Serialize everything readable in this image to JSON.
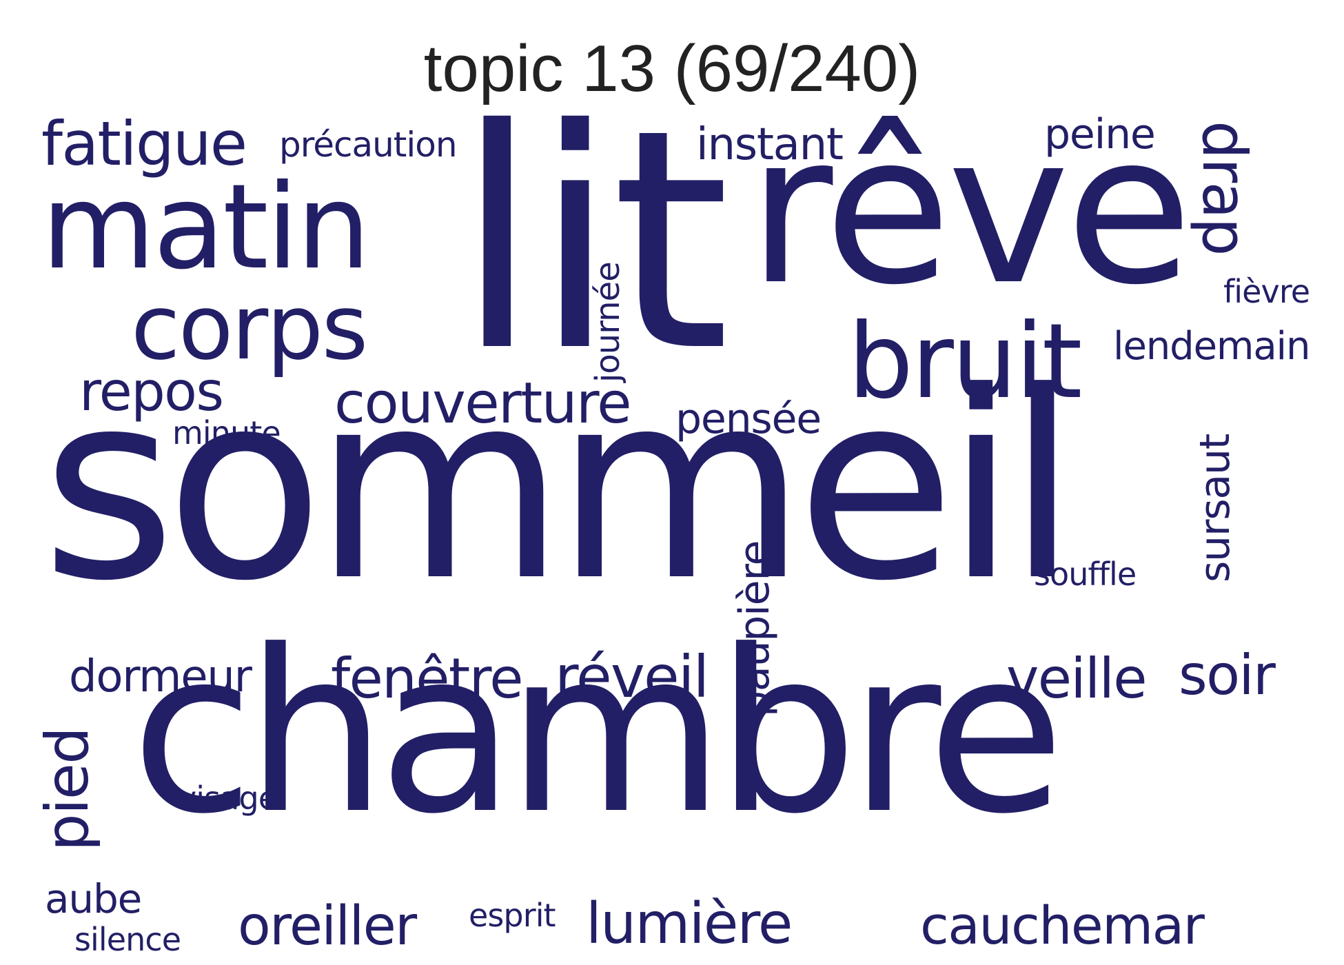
{
  "title": "topic 13 (69/240)",
  "word_color": "#221F66",
  "words": {
    "lit": "lit",
    "sommeil": "sommeil",
    "chambre": "chambre",
    "reve": "rêve",
    "matin": "matin",
    "corps": "corps",
    "bruit": "bruit",
    "fatigue": "fatigue",
    "precaution": "précaution",
    "instant": "instant",
    "peine": "peine",
    "drap": "drap",
    "fievre": "fièvre",
    "lendemain": "lendemain",
    "journee": "journée",
    "repos": "repos",
    "minute": "minute",
    "couverture": "couverture",
    "pensee": "pensée",
    "sursaut": "sursaut",
    "souffle": "souffle",
    "paupiere": "paupière",
    "dormeur": "dormeur",
    "fenetre": "fenêtre",
    "reveil": "réveil",
    "veille": "veille",
    "soir": "soir",
    "pied": "pied",
    "visage": "visage",
    "aube": "aube",
    "silence": "silence",
    "oreiller": "oreiller",
    "esprit": "esprit",
    "lumiere": "lumière",
    "cauchemar": "cauchemar"
  }
}
